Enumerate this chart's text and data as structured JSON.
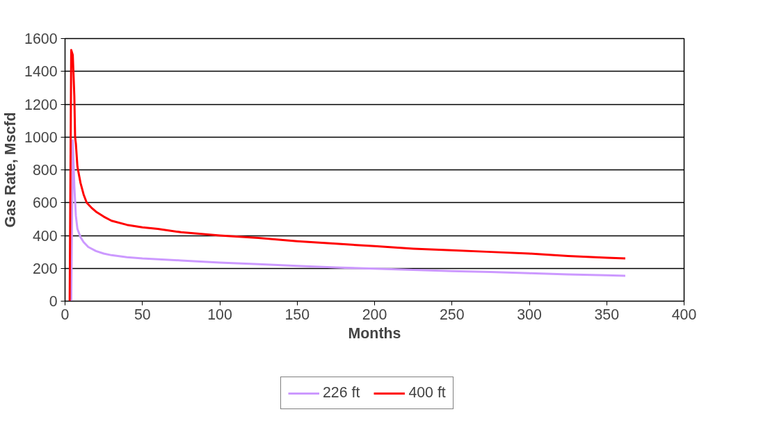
{
  "chart_data": {
    "type": "line",
    "xlabel": "Months",
    "ylabel": "Gas Rate, Mscfd",
    "xlim": [
      0,
      400
    ],
    "xticks": [
      0,
      50,
      100,
      150,
      200,
      250,
      300,
      350,
      400
    ],
    "ylim": [
      0,
      1600
    ],
    "yticks": [
      0,
      200,
      400,
      600,
      800,
      1000,
      1200,
      1400,
      1600
    ],
    "grid": "y",
    "legend": "bottom",
    "marker": "none",
    "line_style": "solid",
    "series": [
      {
        "name": "226 ft",
        "color": "#cc99ff",
        "x": [
          4,
          5,
          6,
          7,
          8,
          10,
          12,
          15,
          20,
          25,
          30,
          40,
          50,
          75,
          100,
          125,
          150,
          175,
          200,
          225,
          250,
          275,
          300,
          325,
          350,
          362
        ],
        "values": [
          0,
          980,
          700,
          520,
          440,
          390,
          360,
          330,
          305,
          290,
          280,
          268,
          260,
          248,
          235,
          225,
          215,
          205,
          198,
          190,
          183,
          178,
          170,
          163,
          158,
          155
        ]
      },
      {
        "name": "400 ft",
        "color": "#ff0000",
        "x": [
          3,
          4,
          5,
          6,
          6.5,
          7,
          8,
          10,
          12,
          14,
          17,
          20,
          25,
          30,
          40,
          50,
          60,
          75,
          100,
          125,
          150,
          175,
          200,
          225,
          250,
          275,
          300,
          325,
          350,
          362
        ],
        "values": [
          0,
          1530,
          1500,
          1250,
          1000,
          960,
          820,
          720,
          650,
          600,
          570,
          545,
          515,
          490,
          465,
          450,
          440,
          420,
          400,
          385,
          365,
          350,
          335,
          320,
          310,
          300,
          290,
          275,
          265,
          260
        ]
      }
    ]
  }
}
